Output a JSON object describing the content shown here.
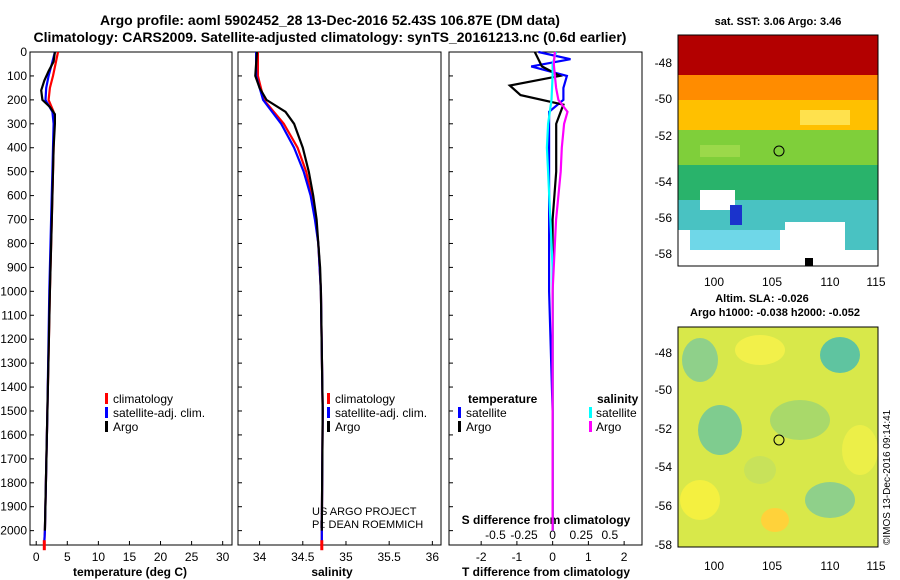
{
  "header": {
    "title_line1": "Argo profile: aoml 5902452_28 13-Dec-2016 52.43S 106.87E (DM data)",
    "title_line2": "Climatology: CARS2009. Satellite-adjusted climatology: synTS_20161213.nc (0.6d earlier)"
  },
  "colors": {
    "climatology": "#ff0000",
    "satellite": "#0000ff",
    "argo": "#000000",
    "t_sat": "#0000ff",
    "s_sat": "#00ffff",
    "s_argo": "#ff00ff"
  },
  "chart_data": [
    {
      "type": "line",
      "name": "temperature",
      "xlabel": "temperature (deg C)",
      "xlim": [
        -1,
        31.5
      ],
      "xticks": [
        0,
        5,
        10,
        15,
        20,
        25,
        30
      ],
      "xtick_labels": [
        "0",
        "5",
        "10",
        "15",
        "20",
        "25",
        "30"
      ],
      "ylim": [
        0,
        2060
      ],
      "yticks": [
        0,
        100,
        200,
        300,
        400,
        500,
        600,
        700,
        800,
        900,
        1000,
        1100,
        1200,
        1300,
        1400,
        1500,
        1600,
        1700,
        1800,
        1900,
        2000
      ],
      "ylabel": "",
      "legend": [
        "climatology",
        "satellite-adj. clim.",
        "Argo"
      ],
      "series": [
        {
          "name": "climatology",
          "color": "#ff0000",
          "depth": [
            0,
            50,
            100,
            150,
            200,
            250,
            300,
            400,
            500,
            700,
            1000,
            1500,
            2000,
            2050
          ],
          "values": [
            3.5,
            3.1,
            2.7,
            2.2,
            2.0,
            2.8,
            2.9,
            2.8,
            2.7,
            2.5,
            2.2,
            1.8,
            1.4,
            1.3
          ]
        },
        {
          "name": "satellite-adj. clim.",
          "color": "#0000ff",
          "depth": [
            0,
            50,
            100,
            150,
            200,
            250,
            300,
            400,
            500,
            700,
            1000,
            1500,
            2000,
            2050
          ],
          "values": [
            3.0,
            2.5,
            2.0,
            1.6,
            1.5,
            2.6,
            2.8,
            2.7,
            2.6,
            2.4,
            2.1,
            1.8,
            1.4,
            1.3
          ]
        },
        {
          "name": "Argo",
          "color": "#000000",
          "depth": [
            0,
            40,
            80,
            120,
            160,
            200,
            230,
            260,
            300,
            400,
            500,
            700,
            1000,
            1500,
            2000
          ],
          "values": [
            3.0,
            2.8,
            2.0,
            1.3,
            0.8,
            1.0,
            2.2,
            3.0,
            3.0,
            2.8,
            2.7,
            2.5,
            2.2,
            1.8,
            1.4
          ]
        }
      ]
    },
    {
      "type": "line",
      "name": "salinity",
      "xlabel": "salinity",
      "xlim": [
        33.75,
        36.1
      ],
      "xticks": [
        34,
        34.5,
        35,
        35.5,
        36
      ],
      "xtick_labels": [
        "34",
        "34.5",
        "35",
        "35.5",
        "36"
      ],
      "ylim": [
        0,
        2060
      ],
      "legend": [
        "climatology",
        "satellite-adj. clim.",
        "Argo"
      ],
      "annotation": [
        "US ARGO PROJECT",
        "PI: DEAN ROEMMICH"
      ],
      "series": [
        {
          "name": "climatology",
          "color": "#ff0000",
          "depth": [
            0,
            100,
            200,
            300,
            400,
            500,
            600,
            700,
            800,
            1000,
            1500,
            2000,
            2050
          ],
          "values": [
            33.98,
            33.98,
            34.05,
            34.28,
            34.44,
            34.54,
            34.6,
            34.65,
            34.68,
            34.71,
            34.73,
            34.72,
            34.72
          ]
        },
        {
          "name": "satellite-adj. clim.",
          "color": "#0000ff",
          "depth": [
            0,
            100,
            200,
            300,
            400,
            500,
            600,
            700,
            800,
            1000,
            1500,
            2000,
            2050
          ],
          "values": [
            33.96,
            33.96,
            34.04,
            34.25,
            34.4,
            34.51,
            34.59,
            34.64,
            34.68,
            34.71,
            34.73,
            34.72,
            34.72
          ]
        },
        {
          "name": "Argo",
          "color": "#000000",
          "depth": [
            0,
            50,
            100,
            150,
            200,
            250,
            300,
            400,
            500,
            600,
            700,
            800,
            900,
            1000,
            1500,
            2000
          ],
          "values": [
            33.97,
            33.96,
            33.95,
            34.0,
            34.08,
            34.3,
            34.4,
            34.5,
            34.57,
            34.62,
            34.66,
            34.68,
            34.7,
            34.71,
            34.73,
            34.72
          ]
        }
      ]
    },
    {
      "type": "line",
      "name": "difference",
      "xlabel": "T difference from climatology",
      "top_xlabel": "S difference from climatology",
      "xlim": [
        -2.9,
        2.5
      ],
      "xticks": [
        -2,
        -1,
        0,
        1,
        2
      ],
      "xtick_labels": [
        "-2",
        "-1",
        "0",
        "1",
        "2"
      ],
      "top_xticks": [
        -0.5,
        -0.25,
        0,
        0.25,
        0.5
      ],
      "top_xtick_labels": [
        "-0.5",
        "-0.25",
        "0",
        "0.25",
        "0.5"
      ],
      "ylim": [
        0,
        2060
      ],
      "legend_temperature": {
        "title": "temperature",
        "items": [
          "satellite",
          "Argo"
        ]
      },
      "legend_salinity": {
        "title": "salinity",
        "items": [
          "satellite",
          "Argo"
        ]
      },
      "series": [
        {
          "name": "T satellite",
          "color": "#0000ff",
          "depth": [
            0,
            30,
            60,
            100,
            150,
            200,
            250,
            300,
            400,
            500,
            700,
            1000,
            1500,
            2000
          ],
          "values": [
            -0.4,
            0.5,
            -0.6,
            0.4,
            0.3,
            0.3,
            -0.1,
            -0.1,
            -0.1,
            -0.1,
            -0.1,
            -0.1,
            0,
            0
          ]
        },
        {
          "name": "T Argo",
          "color": "#000000",
          "depth": [
            0,
            30,
            60,
            100,
            140,
            180,
            220,
            260,
            300,
            400,
            500,
            700,
            1000,
            1500,
            2000
          ],
          "values": [
            -0.5,
            -0.4,
            -0.3,
            0.2,
            -1.2,
            -0.9,
            0.3,
            0.2,
            0.1,
            0.1,
            0.1,
            0.0,
            0.0,
            0.0,
            0.0
          ]
        },
        {
          "name": "S satellite",
          "color": "#00ffff",
          "depth": [
            0,
            50,
            100,
            200,
            300,
            400,
            500,
            600,
            700,
            800,
            900,
            1000,
            1500,
            2000
          ],
          "values": [
            0.03,
            0.0,
            0.0,
            -0.01,
            -0.04,
            -0.05,
            -0.04,
            -0.03,
            -0.02,
            -0.01,
            0.0,
            0.0,
            0.0,
            0.0
          ]
        },
        {
          "name": "S Argo",
          "color": "#ff00ff",
          "depth": [
            0,
            50,
            100,
            150,
            200,
            250,
            300,
            400,
            500,
            600,
            700,
            800,
            1000,
            1500,
            2000
          ],
          "values": [
            0.02,
            0.01,
            0.02,
            0.03,
            0.05,
            0.13,
            0.1,
            0.08,
            0.07,
            0.05,
            0.03,
            0.02,
            0.0,
            0.0,
            0.0
          ]
        }
      ]
    }
  ],
  "maps": {
    "sst": {
      "title": "sat. SST: 3.06 Argo: 3.46",
      "lat_ticks": [
        "-48",
        "-50",
        "-52",
        "-54",
        "-56",
        "-58"
      ],
      "lon_ticks": [
        "100",
        "105",
        "110",
        "115"
      ]
    },
    "sla": {
      "title_line1": "Altim. SLA: -0.026",
      "title_line2": "Argo h1000: -0.038 h2000: -0.052",
      "lat_ticks": [
        "-48",
        "-50",
        "-52",
        "-54",
        "-56",
        "-58"
      ],
      "lon_ticks": [
        "100",
        "105",
        "110",
        "115"
      ],
      "credit": "©IMOS 13-Dec-2016 09:14:41"
    }
  }
}
